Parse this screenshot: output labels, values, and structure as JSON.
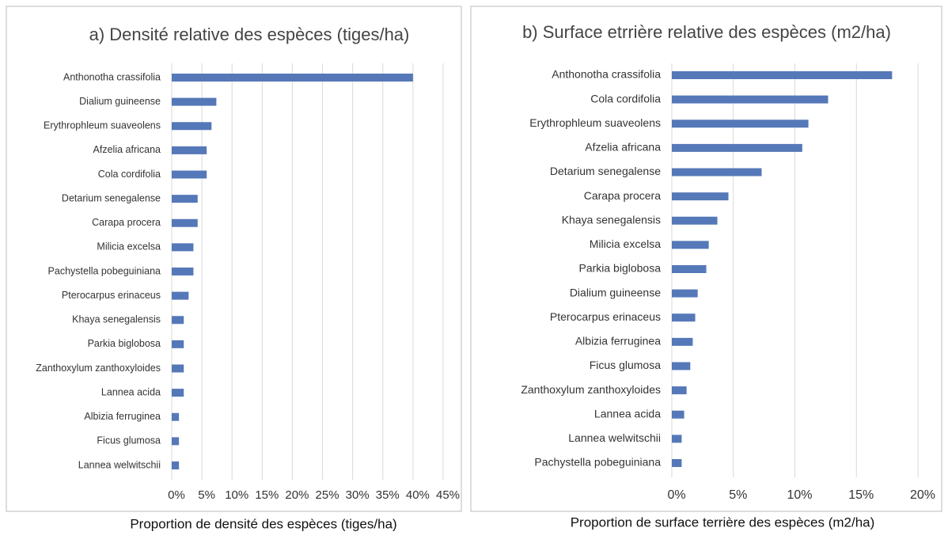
{
  "chart_data": [
    {
      "type": "barh",
      "title": "a) Densité relative des espèces (tiges/ha)",
      "x_label": "Proportion de densité des espèces  (tiges/ha)",
      "categories": [
        "Anthonotha crassifolia",
        "Dialium guineense",
        "Erythrophleum suaveolens",
        "Afzelia africana",
        "Cola cordifolia",
        "Detarium senegalense",
        "Carapa procera",
        "Milicia excelsa",
        "Pachystella pobeguiniana",
        "Pterocarpus erinaceus",
        "Khaya senegalensis",
        "Parkia biglobosa",
        "Zanthoxylum zanthoxyloides",
        "Lannea acida",
        "Albizia ferruginea",
        "Ficus glumosa",
        "Lannea welwitschii"
      ],
      "values": [
        40,
        7.4,
        6.6,
        5.8,
        5.8,
        4.3,
        4.3,
        3.6,
        3.6,
        2.8,
        2.0,
        2.0,
        2.0,
        2.0,
        1.2,
        1.2,
        1.2
      ],
      "color": "#5578b8",
      "xlim": [
        0,
        45
      ],
      "xticks": [
        {
          "value": 0,
          "label": "0%"
        },
        {
          "value": 5,
          "label": "5%"
        },
        {
          "value": 10,
          "label": "10%"
        },
        {
          "value": 15,
          "label": "15%"
        },
        {
          "value": 20,
          "label": "20%"
        },
        {
          "value": 25,
          "label": "25%"
        },
        {
          "value": 30,
          "label": "30%"
        },
        {
          "value": 35,
          "label": "35%"
        },
        {
          "value": 40,
          "label": "40%"
        },
        {
          "value": 45,
          "label": "45%"
        }
      ],
      "grid": true
    },
    {
      "type": "barh",
      "title": "b) Surface etrrière relative des espèces (m2/ha)",
      "x_label": "Proportion de surface terrière des espèces  (m2/ha)",
      "categories": [
        "Anthonotha crassifolia",
        "Cola cordifolia",
        "Erythrophleum suaveolens",
        "Afzelia africana",
        "Detarium senegalense",
        "Carapa procera",
        "Khaya senegalensis",
        "Milicia excelsa",
        "Parkia biglobosa",
        "Dialium guineense",
        "Pterocarpus erinaceus",
        "Albizia ferruginea",
        "Ficus glumosa",
        "Zanthoxylum zanthoxyloides",
        "Lannea acida",
        "Lannea welwitschii",
        "Pachystella pobeguiniana"
      ],
      "values": [
        17.9,
        12.7,
        11.1,
        10.6,
        7.3,
        4.6,
        3.7,
        3.0,
        2.8,
        2.1,
        1.9,
        1.7,
        1.5,
        1.2,
        1.0,
        0.8,
        0.8
      ],
      "color": "#5578b8",
      "xlim": [
        0,
        20
      ],
      "xticks": [
        {
          "value": 0,
          "label": "0%"
        },
        {
          "value": 5,
          "label": "5%"
        },
        {
          "value": 10,
          "label": "10%"
        },
        {
          "value": 15,
          "label": "15%"
        },
        {
          "value": 20,
          "label": "20%"
        }
      ],
      "grid": true
    }
  ]
}
